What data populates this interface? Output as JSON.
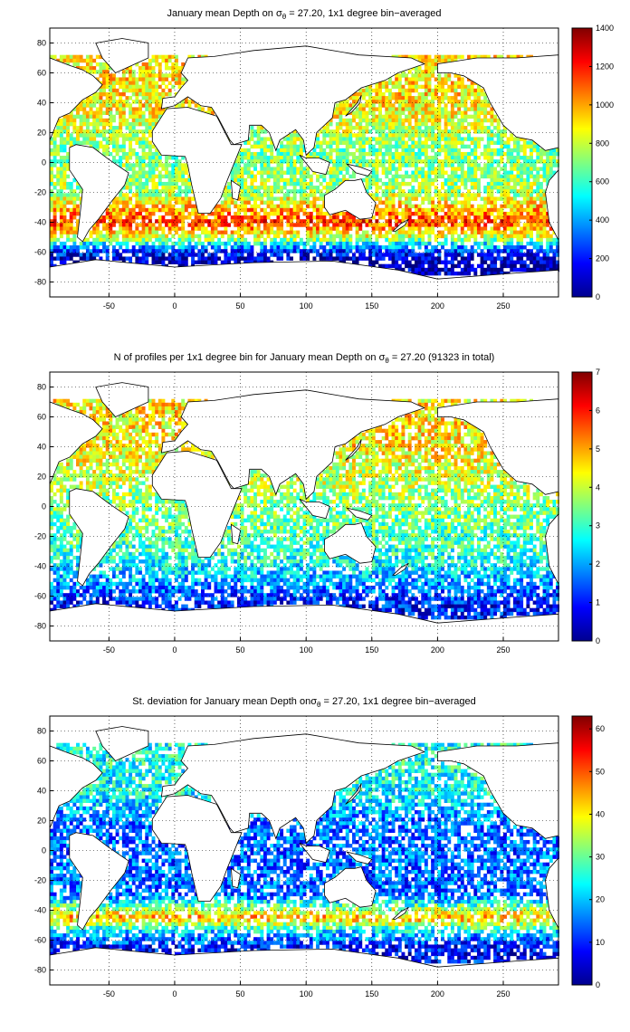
{
  "chart_data": [
    {
      "type": "heatmap",
      "title_pre": "January mean Depth on ",
      "title_sigma": "σ",
      "title_sub": "θ",
      "title_post": " = 27.20, 1x1 degree bin−averaged",
      "xlabel": "",
      "ylabel": "",
      "xlim": [
        -95,
        292
      ],
      "ylim": [
        -90,
        90
      ],
      "xticks": [
        -50,
        0,
        50,
        100,
        150,
        200,
        250
      ],
      "yticks": [
        80,
        60,
        40,
        20,
        0,
        -20,
        -40,
        -60,
        -80
      ],
      "colorbar": {
        "min": 0,
        "max": 1400,
        "ticks": [
          0,
          200,
          400,
          600,
          800,
          1000,
          1200,
          1400
        ]
      },
      "grid": true,
      "field": {
        "zonal_bands": [
          {
            "lat": 40,
            "value": 900
          },
          {
            "lat": 30,
            "value": 850
          },
          {
            "lat": 10,
            "value": 700
          },
          {
            "lat": -20,
            "value": 750
          },
          {
            "lat": -40,
            "value": 1150
          },
          {
            "lat": -50,
            "value": 800
          },
          {
            "lat": -58,
            "value": 300
          },
          {
            "lat": -65,
            "value": 80
          }
        ],
        "density": 0.8
      }
    },
    {
      "type": "heatmap",
      "title_pre": "N of profiles per 1x1 degree bin for January mean Depth on ",
      "title_sigma": "σ",
      "title_sub": "θ",
      "title_post": " = 27.20 (91323 in total)",
      "xlabel": "",
      "ylabel": "",
      "xlim": [
        -95,
        292
      ],
      "ylim": [
        -90,
        90
      ],
      "xticks": [
        -50,
        0,
        50,
        100,
        150,
        200,
        250
      ],
      "yticks": [
        80,
        60,
        40,
        20,
        0,
        -20,
        -40,
        -60,
        -80
      ],
      "colorbar": {
        "min": 0,
        "max": 7,
        "ticks": [
          0,
          1,
          2,
          3,
          4,
          5,
          6,
          7
        ]
      },
      "grid": true,
      "field": {
        "zonal_bands": [
          {
            "lat": 40,
            "value": 4.5
          },
          {
            "lat": 20,
            "value": 4
          },
          {
            "lat": 0,
            "value": 3.5
          },
          {
            "lat": -30,
            "value": 3
          },
          {
            "lat": -50,
            "value": 2
          },
          {
            "lat": -65,
            "value": 1
          }
        ],
        "density": 0.75
      }
    },
    {
      "type": "heatmap",
      "title_pre": "St. deviation for January mean Depth on",
      "title_sigma": "σ",
      "title_sub": "θ",
      "title_post": " = 27.20, 1x1 degree bin−averaged",
      "xlabel": "",
      "ylabel": "",
      "xlim": [
        -95,
        292
      ],
      "ylim": [
        -90,
        90
      ],
      "xticks": [
        -50,
        0,
        50,
        100,
        150,
        200,
        250
      ],
      "yticks": [
        80,
        60,
        40,
        20,
        0,
        -20,
        -40,
        -60,
        -80
      ],
      "colorbar": {
        "min": 0,
        "max": 63,
        "ticks": [
          0,
          10,
          20,
          30,
          40,
          50,
          60
        ]
      },
      "grid": true,
      "field": {
        "zonal_bands": [
          {
            "lat": 40,
            "value": 25
          },
          {
            "lat": 20,
            "value": 15
          },
          {
            "lat": 0,
            "value": 14
          },
          {
            "lat": -30,
            "value": 14
          },
          {
            "lat": -45,
            "value": 45
          },
          {
            "lat": -55,
            "value": 20
          },
          {
            "lat": -65,
            "value": 8
          }
        ],
        "density": 0.75
      }
    }
  ]
}
